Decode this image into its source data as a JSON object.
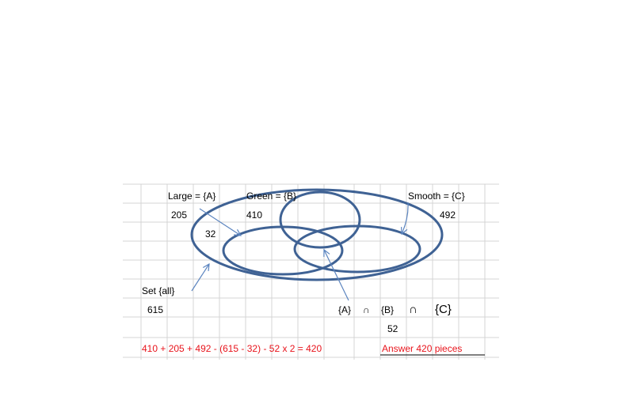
{
  "diagram": {
    "labels": {
      "large": "Large = {A}",
      "green": "Green = {B}",
      "smooth": "Smooth = {C}",
      "set_all": "Set {all}"
    },
    "counts": {
      "large": "205",
      "green": "410",
      "smooth": "492",
      "overlap_ab": "32",
      "total": "615",
      "triple": "52"
    },
    "intersection": {
      "set_a": "{A}",
      "op1": "∩",
      "set_b": "{B}",
      "op2": "∩",
      "set_c": "{C}"
    },
    "formula": "410 + 205 + 492 - (615 - 32) - 52 x 2 = 420",
    "answer": "Answer 420 pieces"
  },
  "colors": {
    "ellipse": "#3f6294",
    "arrow": "#5b84bf",
    "grid": "#d4d4d4",
    "red_text": "#e8141c"
  }
}
